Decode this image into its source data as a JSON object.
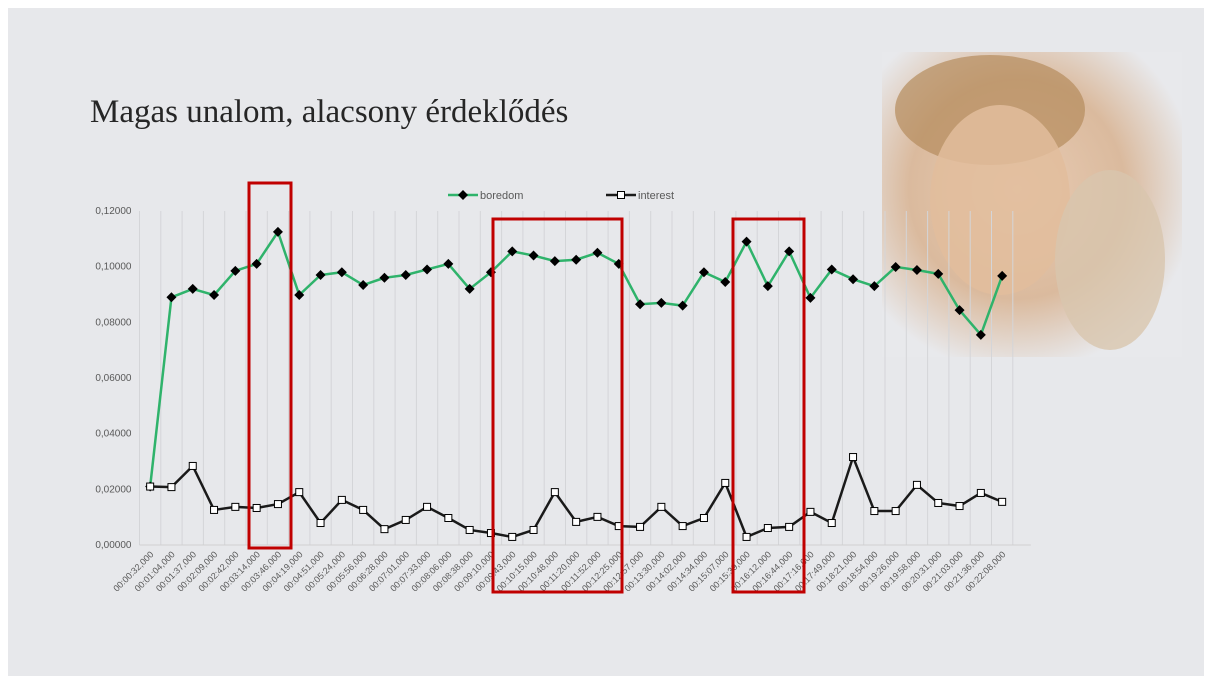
{
  "title": "Magas unalom, alacsony érdeklődés",
  "chart_data": {
    "type": "line",
    "categories": [
      "00:00:32,000",
      "00:01:04,000",
      "00:01:37,000",
      "00:02:09,000",
      "00:02:42,000",
      "00:03:14,000",
      "00:03:46,000",
      "00:04:19,000",
      "00:04:51,000",
      "00:05:24,000",
      "00:05:56,000",
      "00:06:28,000",
      "00:07:01,000",
      "00:07:33,000",
      "00:08:06,000",
      "00:08:38,000",
      "00:09:10,000",
      "00:09:43,000",
      "00:10:15,000",
      "00:10:48,000",
      "00:11:20,000",
      "00:11:52,000",
      "00:12:25,000",
      "00:12:57,000",
      "00:13:30,000",
      "00:14:02,000",
      "00:14:34,000",
      "00:15:07,000",
      "00:15:39,000",
      "00:16:12,000",
      "00:16:44,000",
      "00:17:16,000",
      "00:17:49,000",
      "00:18:21,000",
      "00:18:54,000",
      "00:19:26,000",
      "00:19:58,000",
      "00:20:31,000",
      "00:21:03,000",
      "00:21:36,000",
      "00:22:08,000"
    ],
    "series": [
      {
        "name": "boredom",
        "color": "#2fb36b",
        "marker": "diamond",
        "values": [
          0.021,
          0.089,
          0.092,
          0.0898,
          0.0985,
          0.101,
          0.1125,
          0.0898,
          0.097,
          0.098,
          0.0934,
          0.096,
          0.097,
          0.099,
          0.101,
          0.092,
          0.098,
          0.1055,
          0.104,
          0.102,
          0.1025,
          0.105,
          0.101,
          0.0865,
          0.087,
          0.086,
          0.098,
          0.0945,
          0.109,
          0.093,
          0.1055,
          0.0888,
          0.099,
          0.0955,
          0.093,
          0.0999,
          0.0988,
          0.0974,
          0.0844,
          0.0755,
          0.0967
        ]
      },
      {
        "name": "interest",
        "color": "#1a1a1a",
        "marker": "square",
        "values": [
          0.021,
          0.0208,
          0.0284,
          0.0126,
          0.0137,
          0.0133,
          0.0147,
          0.019,
          0.0079,
          0.0162,
          0.0126,
          0.0057,
          0.009,
          0.0137,
          0.0097,
          0.0054,
          0.0043,
          0.0029,
          0.0054,
          0.019,
          0.0083,
          0.0101,
          0.0068,
          0.0065,
          0.0137,
          0.0068,
          0.0097,
          0.0223,
          0.0029,
          0.0061,
          0.0065,
          0.0119,
          0.0079,
          0.0316,
          0.0122,
          0.0122,
          0.0216,
          0.0151,
          0.014,
          0.0187,
          0.0155
        ]
      }
    ],
    "ylim": [
      0,
      0.12
    ],
    "yticks": [
      {
        "value": 0,
        "label": "0,00000"
      },
      {
        "value": 0.02,
        "label": "0,02000"
      },
      {
        "value": 0.04,
        "label": "0,04000"
      },
      {
        "value": 0.06,
        "label": "0,06000"
      },
      {
        "value": 0.08,
        "label": "0,08000"
      },
      {
        "value": 0.1,
        "label": "0,10000"
      },
      {
        "value": 0.12,
        "label": "0,12000"
      }
    ],
    "grid": true
  }
}
